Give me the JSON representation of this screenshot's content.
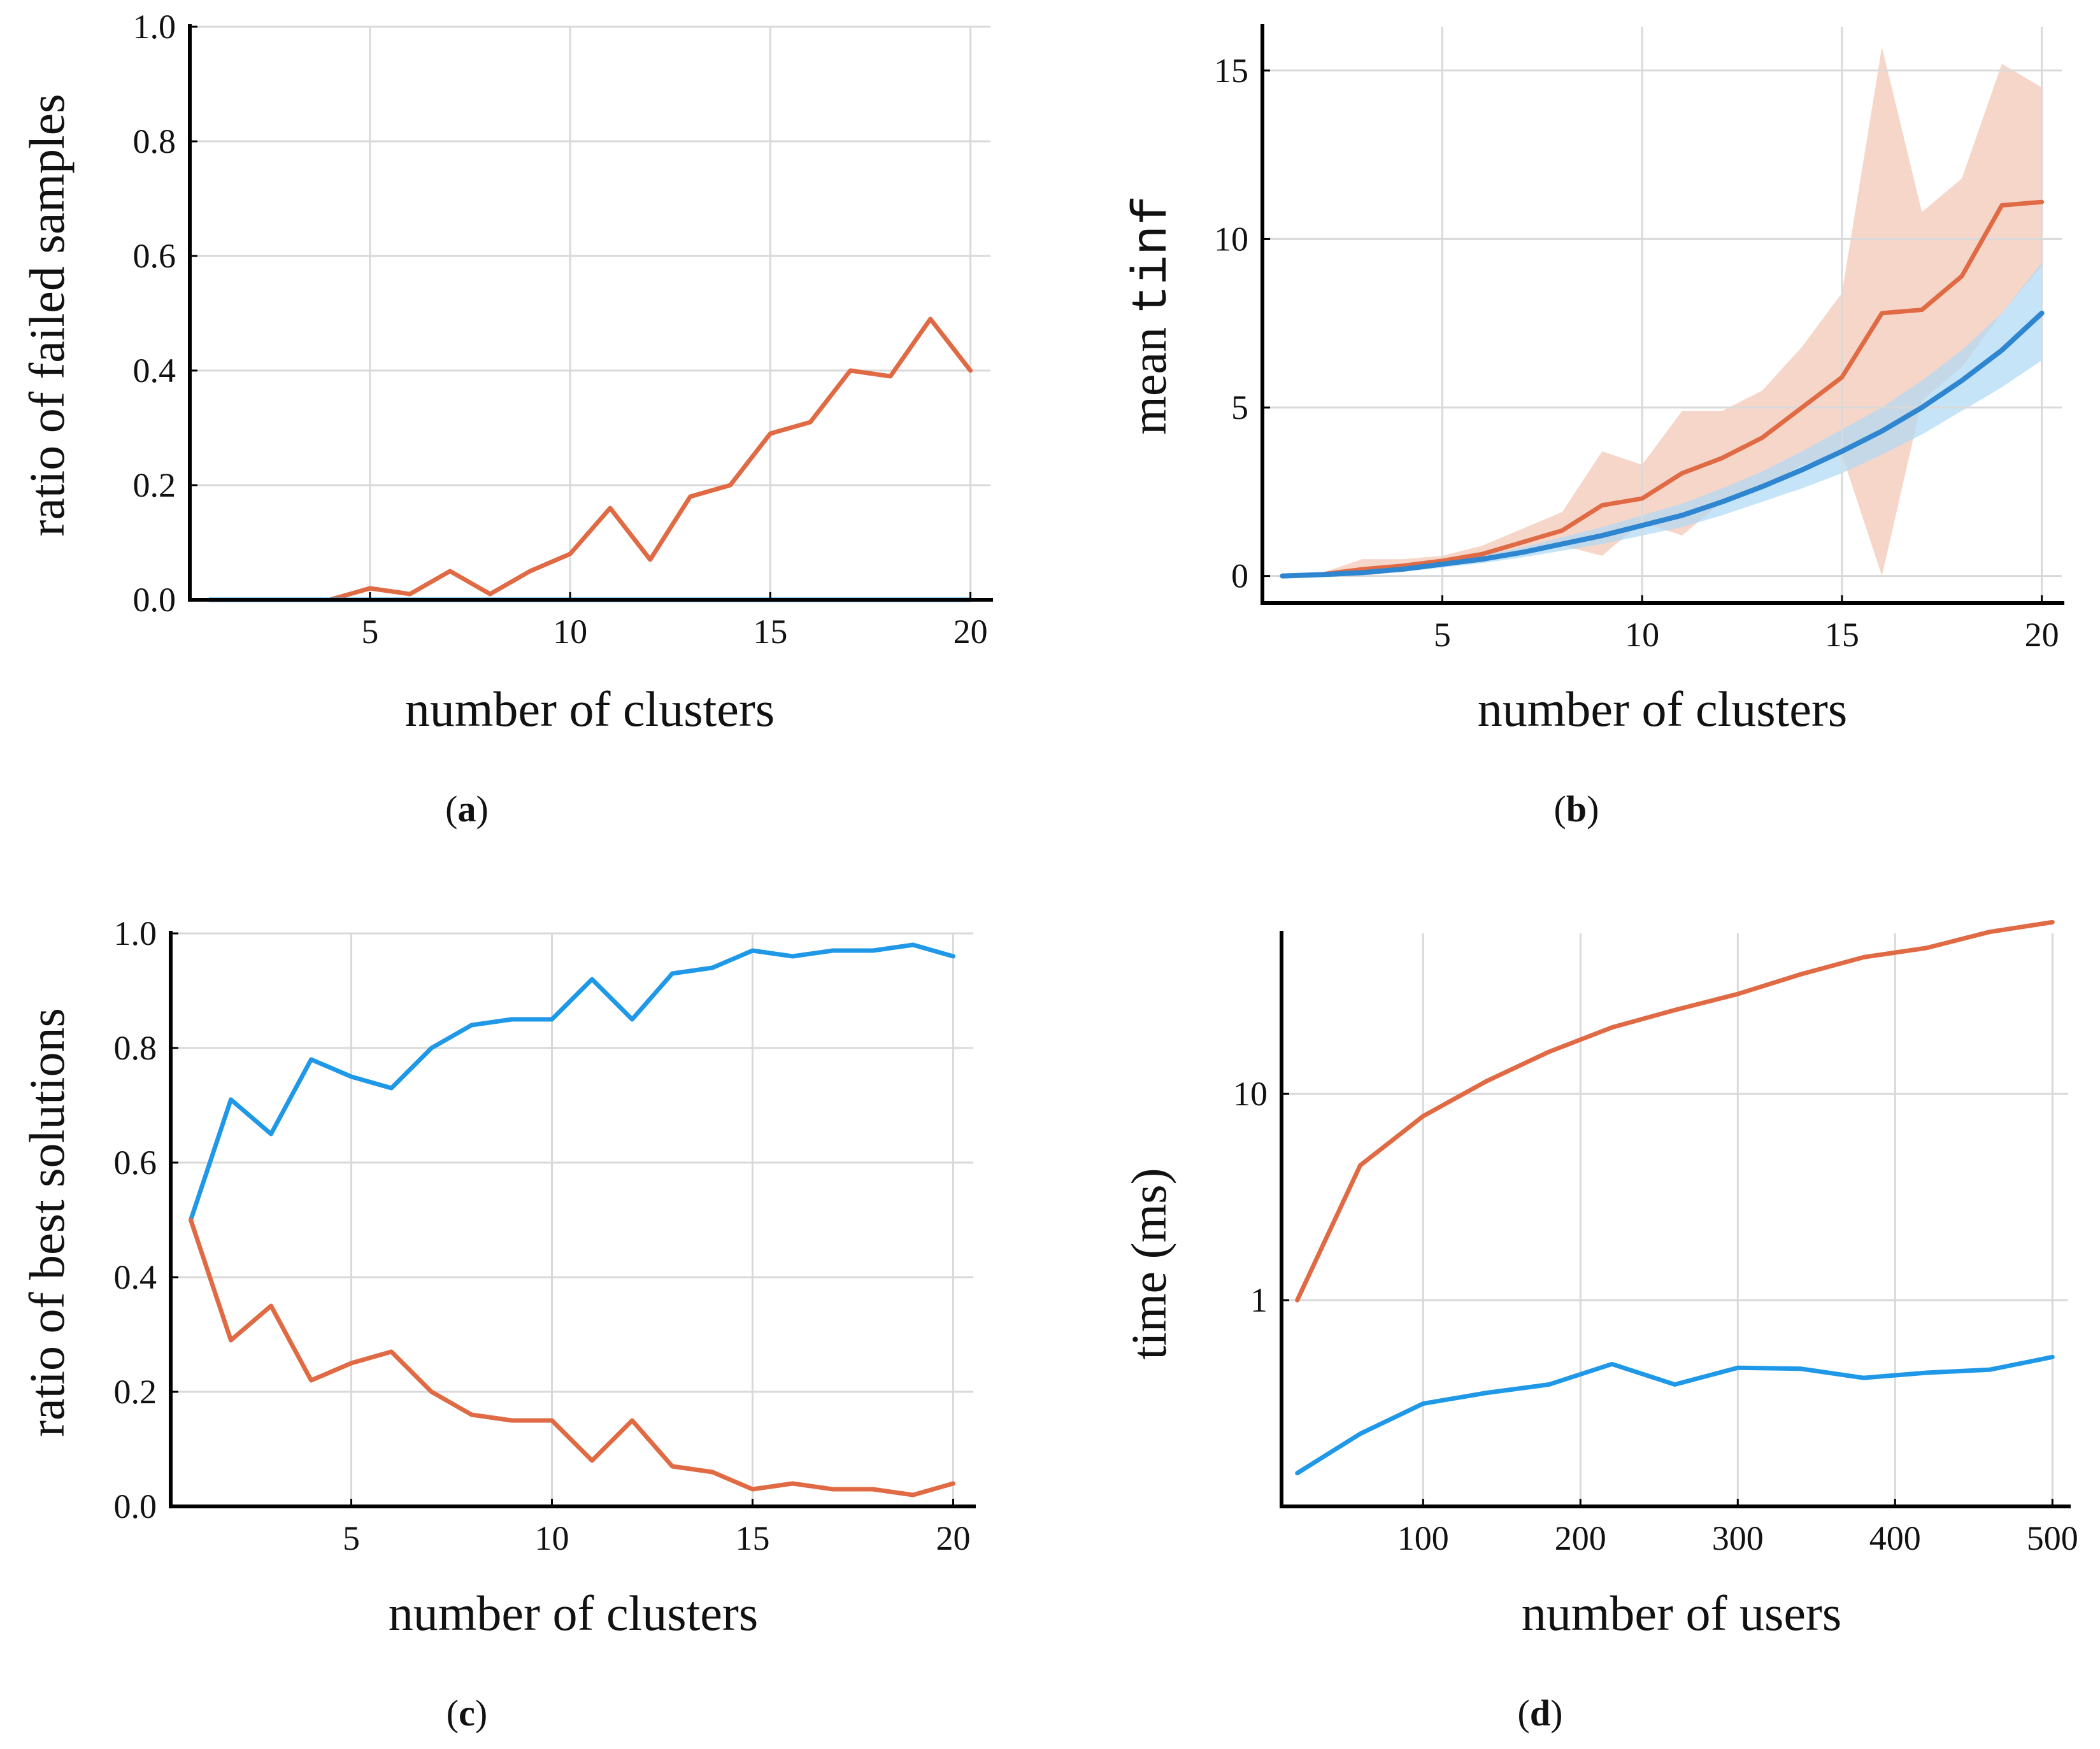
{
  "colors": {
    "orange": "#e06a43",
    "blue": "#1f98e8",
    "orange_band": "#f4c4b4",
    "blue_band": "#aed8f5",
    "dark_blue": "#3a6ea5"
  },
  "chart_data": [
    {
      "id": "a",
      "type": "line",
      "caption": "a",
      "xlabel": "number of clusters",
      "ylabel": "ratio of failed samples",
      "xlim": [
        0.5,
        20.5
      ],
      "ylim": [
        0,
        1
      ],
      "xticks": [
        5,
        10,
        15,
        20
      ],
      "yticks": [
        0.0,
        0.2,
        0.4,
        0.6,
        0.8,
        1.0
      ],
      "ytick_labels": [
        "0.0",
        "0.2",
        "0.4",
        "0.6",
        "0.8",
        "1.0"
      ],
      "x": [
        1,
        2,
        3,
        4,
        5,
        6,
        7,
        8,
        9,
        10,
        11,
        12,
        13,
        14,
        15,
        16,
        17,
        18,
        19,
        20
      ],
      "series": [
        {
          "name": "orange",
          "color": "#e06a43",
          "values": [
            0,
            0,
            0,
            0,
            0.02,
            0.01,
            0.05,
            0.01,
            0.05,
            0.08,
            0.16,
            0.07,
            0.18,
            0.2,
            0.29,
            0.31,
            0.4,
            0.39,
            0.49,
            0.4
          ]
        },
        {
          "name": "blue",
          "color": "#1f98e8",
          "values": [
            0,
            0,
            0,
            0,
            0,
            0,
            0,
            0,
            0,
            0,
            0,
            0,
            0,
            0,
            0,
            0,
            0,
            0,
            0,
            0
          ]
        }
      ]
    },
    {
      "id": "b",
      "type": "line",
      "caption": "b",
      "xlabel": "number of clusters",
      "ylabel_prefix": "mean",
      "ylabel_code": "tinf",
      "xlim": [
        0.5,
        20.5
      ],
      "ylim": [
        -0.8,
        16.3
      ],
      "xticks": [
        5,
        10,
        15,
        20
      ],
      "yticks": [
        0,
        5,
        10,
        15
      ],
      "ytick_labels": [
        "0",
        "5",
        "10",
        "15"
      ],
      "x": [
        1,
        2,
        3,
        4,
        5,
        6,
        7,
        8,
        9,
        10,
        11,
        12,
        13,
        14,
        15,
        16,
        17,
        18,
        19,
        20
      ],
      "series": [
        {
          "name": "orange",
          "color": "#e06a43",
          "band_color": "#f4c4b4",
          "values": [
            0,
            0.05,
            0.2,
            0.3,
            0.45,
            0.65,
            1.0,
            1.35,
            2.1,
            2.3,
            3.05,
            3.5,
            4.1,
            5.0,
            5.9,
            7.8,
            7.9,
            8.9,
            11.0,
            11.1
          ],
          "lower": [
            0,
            0,
            0,
            0.15,
            0.3,
            0.4,
            0.7,
            0.9,
            0.6,
            1.6,
            1.2,
            2.2,
            2.6,
            3.3,
            3.6,
            0.0,
            5.2,
            6.2,
            7.8,
            9.2
          ],
          "upper": [
            0,
            0.1,
            0.5,
            0.5,
            0.6,
            0.9,
            1.4,
            1.9,
            3.7,
            3.3,
            4.9,
            4.9,
            5.5,
            6.8,
            8.4,
            15.7,
            10.8,
            11.8,
            15.2,
            14.5
          ]
        },
        {
          "name": "blue",
          "color": "#1f98e8",
          "band_color": "#aed8f5",
          "values": [
            0,
            0.04,
            0.1,
            0.2,
            0.35,
            0.5,
            0.7,
            0.95,
            1.2,
            1.5,
            1.8,
            2.2,
            2.65,
            3.15,
            3.7,
            4.3,
            5.0,
            5.8,
            6.7,
            7.8
          ],
          "lower": [
            0,
            0.02,
            0.05,
            0.12,
            0.25,
            0.38,
            0.55,
            0.75,
            0.95,
            1.2,
            1.45,
            1.8,
            2.2,
            2.6,
            3.05,
            3.6,
            4.2,
            4.9,
            5.6,
            6.4
          ],
          "upper": [
            0,
            0.06,
            0.15,
            0.28,
            0.45,
            0.62,
            0.85,
            1.15,
            1.45,
            1.8,
            2.15,
            2.6,
            3.1,
            3.7,
            4.35,
            5.0,
            5.8,
            6.7,
            7.8,
            9.3
          ]
        }
      ]
    },
    {
      "id": "c",
      "type": "line",
      "caption": "c",
      "xlabel": "number of clusters",
      "ylabel": "ratio of best solutions",
      "xlim": [
        0.5,
        20.5
      ],
      "ylim": [
        0,
        1
      ],
      "xticks": [
        5,
        10,
        15,
        20
      ],
      "yticks": [
        0.0,
        0.2,
        0.4,
        0.6,
        0.8,
        1.0
      ],
      "ytick_labels": [
        "0.0",
        "0.2",
        "0.4",
        "0.6",
        "0.8",
        "1.0"
      ],
      "x": [
        1,
        2,
        3,
        4,
        5,
        6,
        7,
        8,
        9,
        10,
        11,
        12,
        13,
        14,
        15,
        16,
        17,
        18,
        19,
        20
      ],
      "series": [
        {
          "name": "blue",
          "color": "#1f98e8",
          "values": [
            0.5,
            0.71,
            0.65,
            0.78,
            0.75,
            0.73,
            0.8,
            0.84,
            0.85,
            0.85,
            0.92,
            0.85,
            0.93,
            0.94,
            0.97,
            0.96,
            0.97,
            0.97,
            0.98,
            0.96
          ]
        },
        {
          "name": "orange",
          "color": "#e06a43",
          "values": [
            0.5,
            0.29,
            0.35,
            0.22,
            0.25,
            0.27,
            0.2,
            0.16,
            0.15,
            0.15,
            0.08,
            0.15,
            0.07,
            0.06,
            0.03,
            0.04,
            0.03,
            0.03,
            0.02,
            0.04
          ]
        }
      ]
    },
    {
      "id": "d",
      "type": "line",
      "caption": "d",
      "xlabel": "number of users",
      "ylabel": "time (ms)",
      "yscale": "log",
      "xlim": [
        10,
        510
      ],
      "ylim": [
        0.1,
        60
      ],
      "xticks": [
        100,
        200,
        300,
        400,
        500
      ],
      "yticks": [
        1,
        10
      ],
      "ytick_labels": [
        "1",
        "10"
      ],
      "x": [
        20,
        60,
        100,
        140,
        180,
        220,
        260,
        300,
        340,
        380,
        420,
        460,
        500
      ],
      "series": [
        {
          "name": "orange",
          "color": "#e06a43",
          "values": [
            1.0,
            4.5,
            7.8,
            11.5,
            16.0,
            21.0,
            25.5,
            30.5,
            38.0,
            46.0,
            51.0,
            61.0,
            68.0
          ]
        },
        {
          "name": "blue",
          "color": "#1f98e8",
          "values": [
            0.145,
            0.225,
            0.315,
            0.355,
            0.39,
            0.49,
            0.39,
            0.47,
            0.465,
            0.42,
            0.445,
            0.46,
            0.53
          ]
        }
      ]
    }
  ]
}
